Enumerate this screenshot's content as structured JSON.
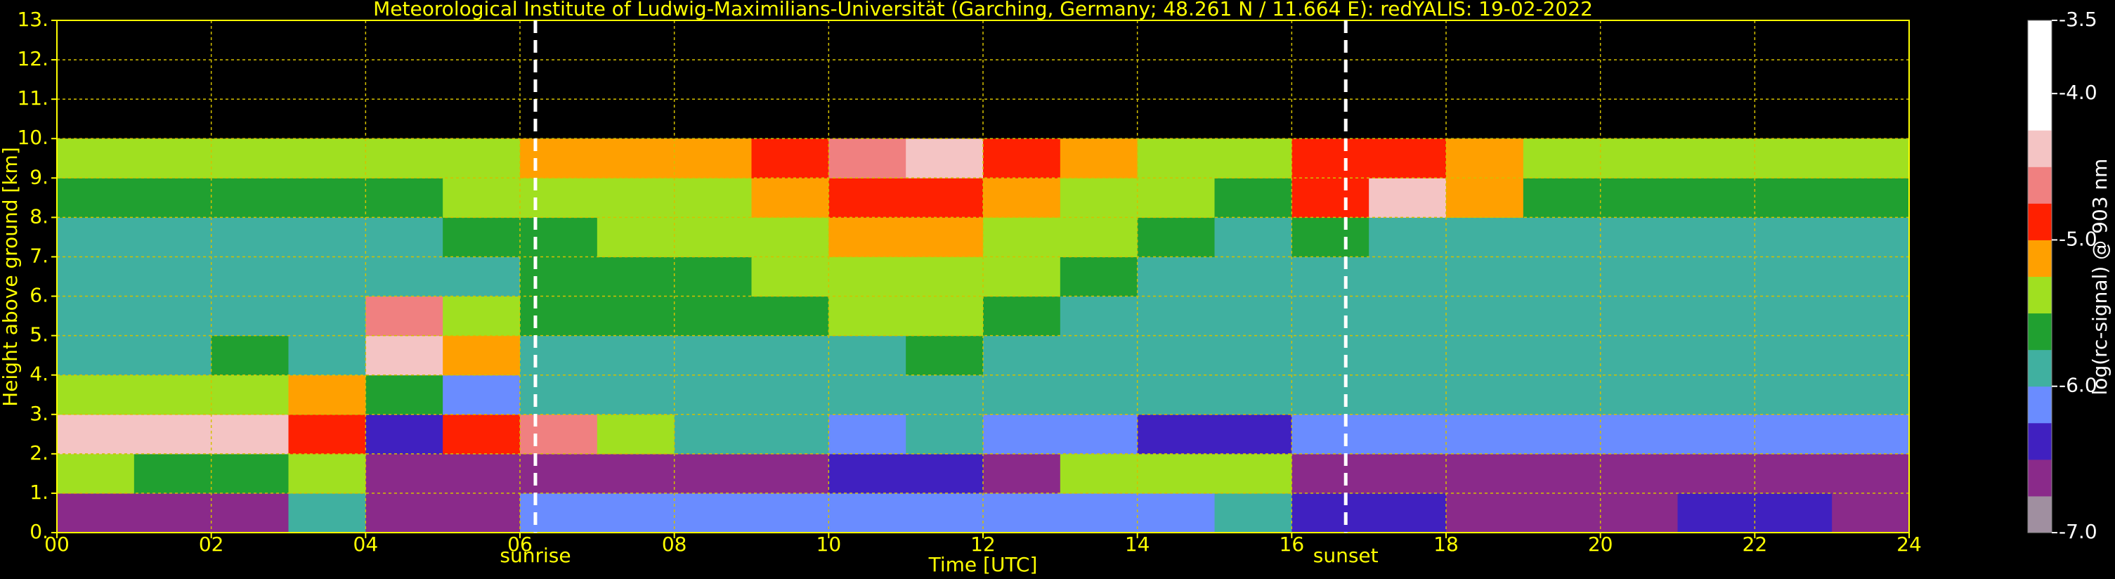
{
  "chart_data": {
    "type": "heatmap",
    "title": "Meteorological Institute of Ludwig-Maximilians-Universität (Garching, Germany; 48.261 N / 11.664 E):     redYALIS: 19-02-2022",
    "x_label": "Time [UTC]",
    "y_label": "Height above ground [km]",
    "colorbar_label": "log(rc-signal) @ 903 nm",
    "xlim": [
      0,
      24
    ],
    "ylim": [
      0,
      13
    ],
    "xticks": [
      {
        "value": 0,
        "label": "00"
      },
      {
        "value": 2,
        "label": "02"
      },
      {
        "value": 4,
        "label": "04"
      },
      {
        "value": 6,
        "label": "06"
      },
      {
        "value": 8,
        "label": "08"
      },
      10,
      12,
      14,
      16,
      18,
      20,
      22,
      24
    ],
    "yticks": [
      {
        "value": 0,
        "label": "0."
      },
      {
        "value": 1,
        "label": "1."
      },
      {
        "value": 2,
        "label": "2."
      },
      {
        "value": 3,
        "label": "3."
      },
      {
        "value": 4,
        "label": "4."
      },
      {
        "value": 5,
        "label": "5."
      },
      {
        "value": 6,
        "label": "6."
      },
      {
        "value": 7,
        "label": "7."
      },
      {
        "value": 8,
        "label": "8."
      },
      {
        "value": 9,
        "label": "9."
      },
      {
        "value": 10,
        "label": "10."
      },
      {
        "value": 11,
        "label": "11."
      },
      {
        "value": 12,
        "label": "12."
      },
      {
        "value": 13,
        "label": "13."
      }
    ],
    "grid": true,
    "zlim": [
      -7,
      -3.5
    ],
    "zticks": [
      -3.5,
      {
        "value": -4,
        "label": "-4.0"
      },
      {
        "value": -5,
        "label": "-5.0"
      },
      {
        "value": -6,
        "label": "-6.0"
      },
      {
        "value": -7,
        "label": "-7.0"
      }
    ],
    "colors": [
      "#a08fa0",
      "#8a2a8a",
      "#4020c0",
      "#6a8cff",
      "#40b0a0",
      "#20a030",
      "#a0e020",
      "#ffa000",
      "#ff2000",
      "#f08080",
      "#f4c4c4",
      "#ffffff",
      "#ffffff",
      "#ffffff"
    ],
    "xbins": [
      0,
      1,
      2,
      3,
      4,
      5,
      6,
      7,
      8,
      9,
      10,
      11,
      12,
      13,
      14,
      15,
      16,
      17,
      18,
      19,
      20,
      21,
      22,
      23,
      24
    ],
    "ybins": [
      0,
      1,
      2,
      3,
      4,
      5,
      6,
      7,
      8,
      9,
      10
    ],
    "z": [
      [
        -6.6,
        -6.7,
        -6.7,
        -6.0,
        -6.6,
        -6.6,
        -6.2,
        -6.2,
        -6.2,
        -6.2,
        -6.1,
        -6.1,
        -6.1,
        -6.1,
        -6.1,
        -6.0,
        -6.3,
        -6.3,
        -6.6,
        -6.6,
        -6.6,
        -6.5,
        -6.5,
        -6.6
      ],
      [
        -5.5,
        -5.6,
        -5.6,
        -5.5,
        -6.6,
        -6.6,
        -6.7,
        -6.7,
        -6.7,
        -6.6,
        -6.4,
        -6.4,
        -6.7,
        -5.4,
        -5.3,
        -5.4,
        -6.7,
        -6.7,
        -6.7,
        -6.7,
        -6.6,
        -6.6,
        -6.6,
        -6.6
      ],
      [
        -4.5,
        -4.4,
        -4.4,
        -5.0,
        -6.3,
        -5.0,
        -4.7,
        -5.5,
        -6.0,
        -6.0,
        -6.2,
        -6.0,
        -6.2,
        -6.2,
        -6.3,
        -6.3,
        -6.2,
        -6.2,
        -6.2,
        -6.2,
        -6.2,
        -6.2,
        -6.2,
        -6.2
      ],
      [
        -5.5,
        -5.3,
        -5.3,
        -5.2,
        -5.6,
        -6.1,
        -6.0,
        -6.0,
        -6.0,
        -6.0,
        -6.0,
        -5.9,
        -6.0,
        -6.0,
        -6.0,
        -6.0,
        -6.0,
        -6.0,
        -6.0,
        -6.0,
        -6.0,
        -6.0,
        -6.0,
        -6.0
      ],
      [
        -6.0,
        -5.8,
        -5.6,
        -6.0,
        -4.5,
        -5.2,
        -6.0,
        -5.9,
        -5.9,
        -5.8,
        -5.8,
        -5.7,
        -5.8,
        -5.9,
        -5.9,
        -6.0,
        -6.0,
        -6.0,
        -6.0,
        -6.0,
        -6.0,
        -6.0,
        -6.0,
        -6.0
      ],
      [
        -6.0,
        -6.0,
        -6.0,
        -6.0,
        -4.6,
        -5.5,
        -5.7,
        -5.7,
        -5.7,
        -5.6,
        -5.5,
        -5.4,
        -5.6,
        -5.8,
        -5.9,
        -5.9,
        -6.0,
        -6.0,
        -6.0,
        -6.0,
        -6.0,
        -6.0,
        -6.0,
        -6.0
      ],
      [
        -5.9,
        -5.9,
        -5.9,
        -5.9,
        -5.9,
        -5.9,
        -5.6,
        -5.6,
        -5.6,
        -5.5,
        -5.4,
        -5.3,
        -5.5,
        -5.6,
        -5.8,
        -5.9,
        -5.8,
        -5.9,
        -5.9,
        -5.9,
        -5.9,
        -5.9,
        -5.9,
        -5.9
      ],
      [
        -5.8,
        -5.8,
        -5.8,
        -5.8,
        -5.8,
        -5.7,
        -5.6,
        -5.5,
        -5.5,
        -5.4,
        -5.2,
        -5.1,
        -5.3,
        -5.5,
        -5.7,
        -5.8,
        -5.6,
        -5.8,
        -5.8,
        -5.8,
        -5.8,
        -5.8,
        -5.8,
        -5.8
      ],
      [
        -5.6,
        -5.6,
        -5.6,
        -5.6,
        -5.6,
        -5.5,
        -5.4,
        -5.3,
        -5.3,
        -5.2,
        -4.9,
        -4.8,
        -5.1,
        -5.3,
        -5.5,
        -5.6,
        -5.0,
        -4.3,
        -5.2,
        -5.6,
        -5.6,
        -5.6,
        -5.6,
        -5.6
      ],
      [
        -5.4,
        -5.4,
        -5.4,
        -5.4,
        -5.4,
        -5.3,
        -5.2,
        -5.1,
        -5.1,
        -5.0,
        -4.6,
        -4.5,
        -4.9,
        -5.1,
        -5.3,
        -5.4,
        -5.0,
        -4.9,
        -5.1,
        -5.3,
        -5.4,
        -5.4,
        -5.4,
        -5.4
      ]
    ],
    "annotations": [
      {
        "text": "sunrise",
        "x": 6.2
      },
      {
        "text": "sunset",
        "x": 16.7
      }
    ]
  }
}
